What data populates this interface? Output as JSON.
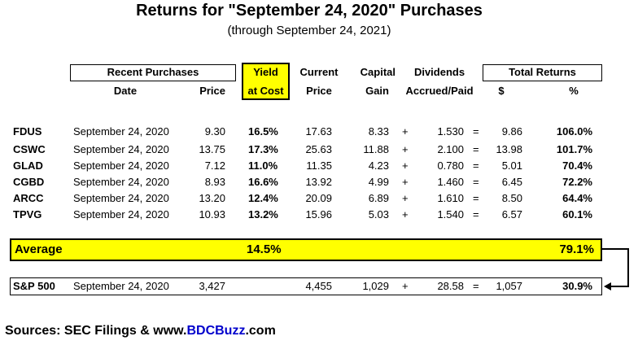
{
  "title": "Returns for \"September 24, 2020\" Purchases",
  "subtitle": "(through September 24, 2021)",
  "headers": {
    "recent_purchases": "Recent Purchases",
    "date": "Date",
    "price": "Price",
    "yield_l1": "Yield",
    "yield_l2": "at Cost",
    "current_l1": "Current",
    "current_l2": "Price",
    "capital_l1": "Capital",
    "capital_l2": "Gain",
    "dividends_l1": "Dividends",
    "dividends_l2": "Accrued/Paid",
    "total_returns": "Total Returns",
    "dollar": "$",
    "percent": "%"
  },
  "colors": {
    "highlight": "#ffff00",
    "link": "#0000cc"
  },
  "rows": [
    {
      "ticker": "FDUS",
      "date": "September 24, 2020",
      "price": "9.30",
      "yield": "16.5%",
      "current": "17.63",
      "gain": "8.33",
      "plus": "+",
      "div": "1.530",
      "eq": "=",
      "dollar": "9.86",
      "pct": "106.0%"
    },
    {
      "ticker": "CSWC",
      "date": "September 24, 2020",
      "price": "13.75",
      "yield": "17.3%",
      "current": "25.63",
      "gain": "11.88",
      "plus": "+",
      "div": "2.100",
      "eq": "=",
      "dollar": "13.98",
      "pct": "101.7%"
    },
    {
      "ticker": "GLAD",
      "date": "September 24, 2020",
      "price": "7.12",
      "yield": "11.0%",
      "current": "11.35",
      "gain": "4.23",
      "plus": "+",
      "div": "0.780",
      "eq": "=",
      "dollar": "5.01",
      "pct": "70.4%"
    },
    {
      "ticker": "CGBD",
      "date": "September 24, 2020",
      "price": "8.93",
      "yield": "16.6%",
      "current": "13.92",
      "gain": "4.99",
      "plus": "+",
      "div": "1.460",
      "eq": "=",
      "dollar": "6.45",
      "pct": "72.2%"
    },
    {
      "ticker": "ARCC",
      "date": "September 24, 2020",
      "price": "13.20",
      "yield": "12.4%",
      "current": "20.09",
      "gain": "6.89",
      "plus": "+",
      "div": "1.610",
      "eq": "=",
      "dollar": "8.50",
      "pct": "64.4%"
    },
    {
      "ticker": "TPVG",
      "date": "September 24, 2020",
      "price": "10.93",
      "yield": "13.2%",
      "current": "15.96",
      "gain": "5.03",
      "plus": "+",
      "div": "1.540",
      "eq": "=",
      "dollar": "6.57",
      "pct": "60.1%"
    }
  ],
  "average": {
    "label": "Average",
    "yield": "14.5%",
    "pct": "79.1%"
  },
  "sp500": {
    "ticker": "S&P 500",
    "date": "September 24, 2020",
    "price": "3,427",
    "current": "4,455",
    "gain": "1,029",
    "plus": "+",
    "div": "28.58",
    "eq": "=",
    "dollar": "1,057",
    "pct": "30.9%"
  },
  "sources": {
    "prefix": "Sources: SEC Filings & www.",
    "link": "BDCBuzz",
    "suffix": ".com"
  }
}
